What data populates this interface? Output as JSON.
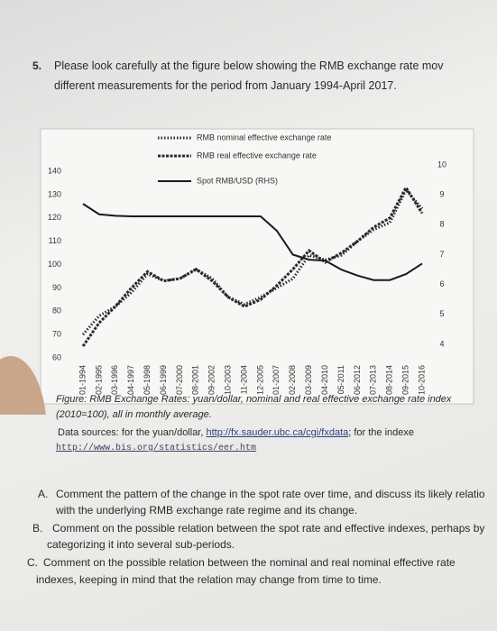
{
  "question": {
    "number": "5.",
    "lines": [
      "Please look carefully at the figure below showing the RMB exchange rate mov",
      "different measurements for the period from January 1994-April 2017."
    ]
  },
  "chart_data": {
    "type": "line",
    "categories": [
      "01-1994",
      "02-1995",
      "03-1996",
      "04-1997",
      "05-1998",
      "06-1999",
      "07-2000",
      "08-2001",
      "09-2002",
      "10-2003",
      "11-2004",
      "12-2005",
      "01-2007",
      "02-2008",
      "03-2009",
      "04-2010",
      "05-2011",
      "06-2012",
      "07-2013",
      "08-2014",
      "09-2015",
      "10-2016"
    ],
    "series": [
      {
        "name": "RMB nominal effective exchange rate",
        "color": "#2a2a2a",
        "style": "dotted",
        "values": [
          70,
          78,
          82,
          88,
          96,
          93,
          94,
          98,
          94,
          86,
          83,
          86,
          90,
          94,
          104,
          102,
          104,
          110,
          115,
          118,
          132,
          124
        ]
      },
      {
        "name": "RMB real effective exchange rate",
        "color": "#2a2a2a",
        "style": "dashed",
        "values": [
          65,
          75,
          82,
          90,
          97,
          93,
          94,
          98,
          93,
          86,
          82,
          85,
          91,
          98,
          106,
          101,
          105,
          110,
          116,
          120,
          133,
          122
        ]
      },
      {
        "name": "Spot RMB/USD (RHS)",
        "color": "#1a1a1a",
        "style": "solid",
        "axis": "y2",
        "values": [
          8.7,
          8.35,
          8.3,
          8.28,
          8.28,
          8.28,
          8.28,
          8.28,
          8.28,
          8.28,
          8.28,
          8.28,
          7.8,
          7.0,
          6.83,
          6.8,
          6.5,
          6.3,
          6.15,
          6.15,
          6.35,
          6.7
        ]
      }
    ],
    "ylim": [
      60,
      140
    ],
    "yticks": [
      140,
      130,
      120,
      110,
      100,
      90,
      80,
      70,
      60
    ],
    "y2lim": [
      4,
      10
    ],
    "y2ticks": [
      10,
      9,
      8,
      7,
      6,
      5,
      4
    ]
  },
  "caption": {
    "lines": [
      "Figure: RMB Exchange Rates: yuan/dollar, nominal and real effective exchange rate index",
      "(2010=100), all in monthly average."
    ]
  },
  "sources": {
    "text1": "Data sources: for the yuan/dollar, ",
    "link1": "http://fx.sauder.ubc.ca/cgi/fxdata",
    "text2": "; for the indexe",
    "link2": "http://www.bis.org/statistics/eer.htm"
  },
  "parts": [
    {
      "label": "A.",
      "lines": [
        "Comment the pattern of the change in the spot rate over time, and discuss its likely relatio",
        "with the underlying RMB exchange rate regime and its change."
      ]
    },
    {
      "label": "B.",
      "lines": [
        "Comment on the possible relation between the spot rate and effective indexes, perhaps by",
        "categorizing it into several sub-periods."
      ]
    },
    {
      "label": "C.",
      "lines": [
        "Comment on the possible relation between the nominal and real nominal effective rate",
        "indexes, keeping in mind that the relation may change from time to time."
      ]
    }
  ]
}
